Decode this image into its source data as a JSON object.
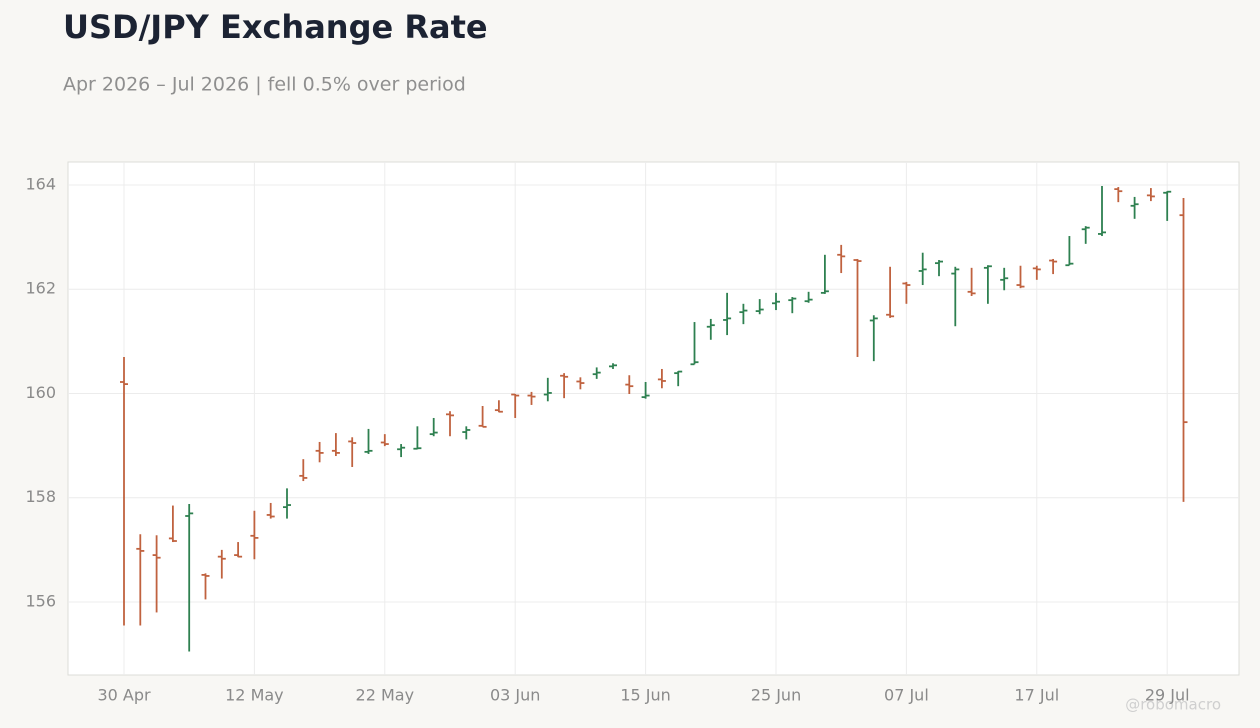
{
  "chart_data": {
    "type": "ohlc",
    "title": "USD/JPY Exchange Rate",
    "subtitle": "Apr 2026 – Jul 2026 | fell 0.5% over period",
    "watermark": "@robomacro",
    "categories": [
      "30 Apr",
      null,
      null,
      null,
      null,
      null,
      null,
      null,
      "12 May",
      null,
      null,
      null,
      null,
      null,
      null,
      null,
      "22 May",
      null,
      null,
      null,
      null,
      null,
      null,
      null,
      "03 Jun",
      null,
      null,
      null,
      null,
      null,
      null,
      null,
      "15 Jun",
      null,
      null,
      null,
      null,
      null,
      null,
      null,
      "25 Jun",
      null,
      null,
      null,
      null,
      null,
      null,
      null,
      "07 Jul",
      null,
      null,
      null,
      null,
      null,
      null,
      null,
      "17 Jul",
      null,
      null,
      null,
      null,
      null,
      null,
      null,
      "29 Jul",
      null
    ],
    "open": [
      160.22,
      157.02,
      156.9,
      157.22,
      157.65,
      156.52,
      156.87,
      156.9,
      157.27,
      157.67,
      157.82,
      158.42,
      158.9,
      158.9,
      159.08,
      158.88,
      159.06,
      158.93,
      158.94,
      159.22,
      159.6,
      159.26,
      159.38,
      159.68,
      159.98,
      159.96,
      159.98,
      160.34,
      160.23,
      160.37,
      160.52,
      160.17,
      159.93,
      160.27,
      160.39,
      160.56,
      161.28,
      161.41,
      161.56,
      161.58,
      161.73,
      161.79,
      161.77,
      161.93,
      162.66,
      162.56,
      161.4,
      161.51,
      162.11,
      162.35,
      162.5,
      162.3,
      161.95,
      162.41,
      162.18,
      162.08,
      162.4,
      162.55,
      162.46,
      163.15,
      163.06,
      163.92,
      163.6,
      163.8,
      163.85,
      163.42
    ],
    "high": [
      160.7,
      157.3,
      157.28,
      157.85,
      157.88,
      156.55,
      157.0,
      157.15,
      157.75,
      157.9,
      158.18,
      158.74,
      159.07,
      159.24,
      159.16,
      159.32,
      159.22,
      159.03,
      159.37,
      159.53,
      159.66,
      159.37,
      159.76,
      159.87,
      159.99,
      160.03,
      160.3,
      160.39,
      160.31,
      160.5,
      160.58,
      160.35,
      160.22,
      160.47,
      160.43,
      161.37,
      161.43,
      161.93,
      161.72,
      161.81,
      161.93,
      161.85,
      161.95,
      162.66,
      162.85,
      162.58,
      161.5,
      162.43,
      162.14,
      162.7,
      162.56,
      162.43,
      162.41,
      162.46,
      162.41,
      162.45,
      162.45,
      162.58,
      163.02,
      163.21,
      163.98,
      163.96,
      163.77,
      163.94,
      163.88,
      163.75
    ],
    "low": [
      155.55,
      155.55,
      155.8,
      157.15,
      155.05,
      156.05,
      156.45,
      156.86,
      156.82,
      157.6,
      157.6,
      158.32,
      158.68,
      158.8,
      158.59,
      158.84,
      158.99,
      158.78,
      158.93,
      159.18,
      159.18,
      159.12,
      159.36,
      159.64,
      159.53,
      159.78,
      159.85,
      159.91,
      160.08,
      160.28,
      160.47,
      159.99,
      159.9,
      160.1,
      160.14,
      160.56,
      161.03,
      161.12,
      161.33,
      161.52,
      161.6,
      161.54,
      161.74,
      161.91,
      162.31,
      160.7,
      160.62,
      161.45,
      161.72,
      162.08,
      162.25,
      161.29,
      161.87,
      161.72,
      161.98,
      162.02,
      162.18,
      162.29,
      162.46,
      162.87,
      163.02,
      163.67,
      163.35,
      163.69,
      163.31,
      157.92
    ],
    "close": [
      160.18,
      156.98,
      156.85,
      157.17,
      157.7,
      156.5,
      156.83,
      156.87,
      157.23,
      157.64,
      157.86,
      158.38,
      158.86,
      158.86,
      159.05,
      158.9,
      159.03,
      158.96,
      158.95,
      159.25,
      159.58,
      159.3,
      159.36,
      159.65,
      159.96,
      159.94,
      160.01,
      160.32,
      160.2,
      160.4,
      160.54,
      160.14,
      159.96,
      160.24,
      160.42,
      160.6,
      161.31,
      161.44,
      161.59,
      161.61,
      161.76,
      161.82,
      161.8,
      161.96,
      162.63,
      162.54,
      161.44,
      161.48,
      162.08,
      162.38,
      162.53,
      162.38,
      161.92,
      162.44,
      162.21,
      162.05,
      162.38,
      162.53,
      162.49,
      163.18,
      163.09,
      163.88,
      163.63,
      163.78,
      163.87,
      159.45
    ],
    "up_color": "#2e8050",
    "down_color": "#c0623f",
    "ylim": [
      154.6,
      164.44
    ],
    "yticks": [
      156,
      158,
      160,
      162,
      164
    ],
    "grid": true
  }
}
